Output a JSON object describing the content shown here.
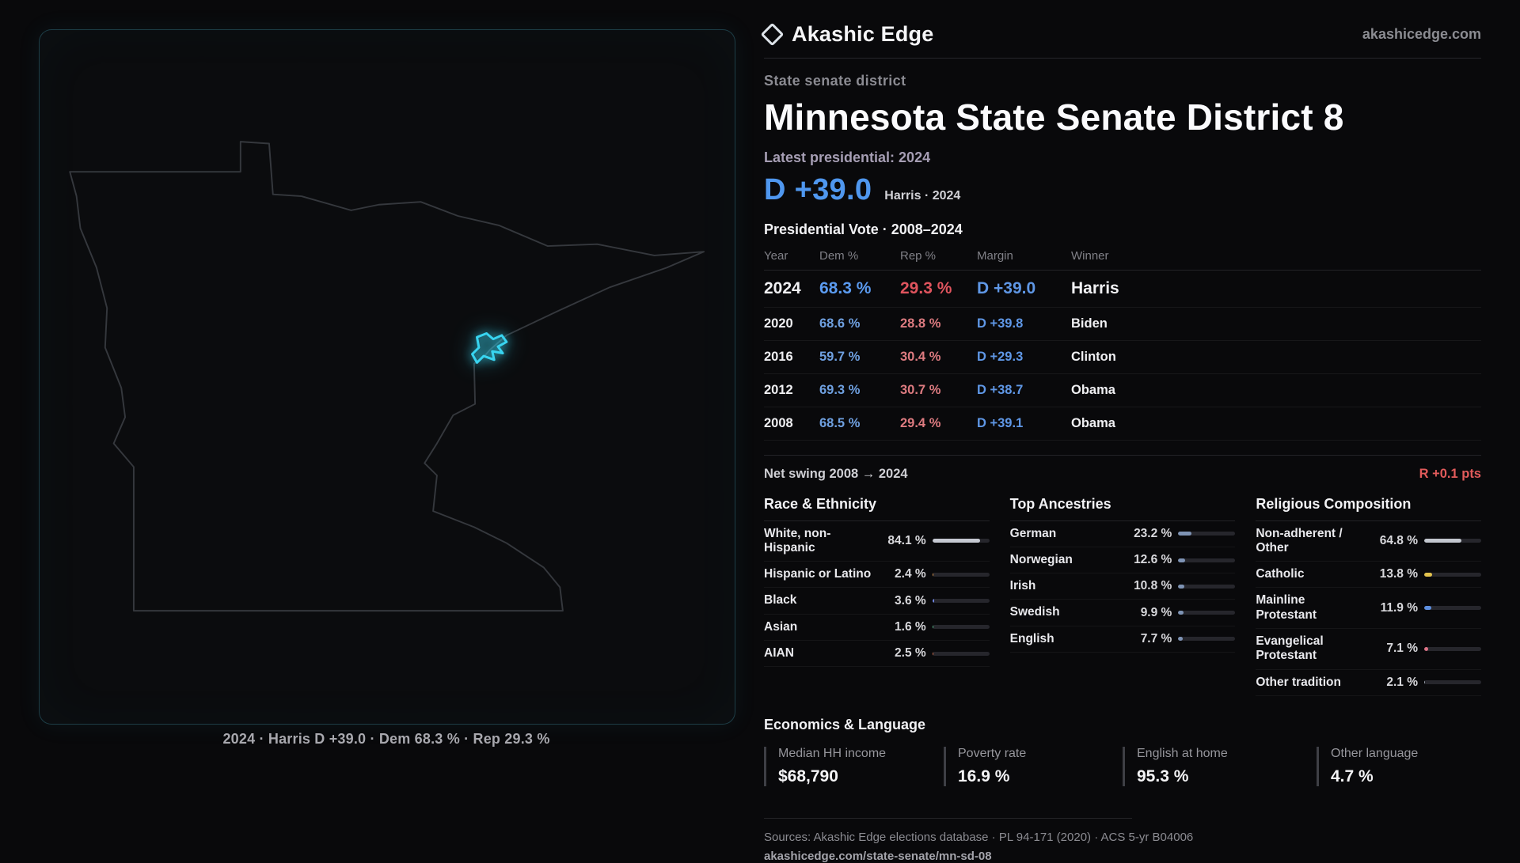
{
  "brand": {
    "name": "Akashic Edge",
    "website": "akashicedge.com"
  },
  "header": {
    "kicker": "State senate district",
    "title": "Minnesota State Senate District 8",
    "latest_label": "Latest presidential: 2024",
    "margin_value": "D +39.0",
    "margin_context": "Harris · 2024"
  },
  "colors": {
    "dem_blue": "#5b9bf0",
    "rep_red": "#e0545e",
    "accent_cyan": "#38d4f0",
    "swing_red": "#e25b5b",
    "outline_gray": "#35383d"
  },
  "map_panel": {
    "state": "Minnesota",
    "caption": "2024 · Harris D +39.0 · Dem 68.3 % · Rep 29.3 %",
    "outline_color": "#35383d",
    "district_color": "#38d4f0"
  },
  "vote_table": {
    "title": "Presidential Vote · 2008–2024",
    "columns": [
      "Year",
      "Dem %",
      "Rep %",
      "Margin",
      "Winner"
    ],
    "rows": [
      {
        "year": "2024",
        "dem": "68.3 %",
        "rep": "29.3 %",
        "margin": "D +39.0",
        "winner": "Harris",
        "emphasis": true
      },
      {
        "year": "2020",
        "dem": "68.6 %",
        "rep": "28.8 %",
        "margin": "D +39.8",
        "winner": "Biden",
        "emphasis": false
      },
      {
        "year": "2016",
        "dem": "59.7 %",
        "rep": "30.4 %",
        "margin": "D +29.3",
        "winner": "Clinton",
        "emphasis": false
      },
      {
        "year": "2012",
        "dem": "69.3 %",
        "rep": "30.7 %",
        "margin": "D +38.7",
        "winner": "Obama",
        "emphasis": false
      },
      {
        "year": "2008",
        "dem": "68.5 %",
        "rep": "29.4 %",
        "margin": "D +39.1",
        "winner": "Obama",
        "emphasis": false
      }
    ]
  },
  "net_swing": {
    "label": "Net swing 2008 → 2024",
    "value": "R +0.1 pts"
  },
  "demographics": {
    "sections": [
      {
        "title": "Race & Ethnicity",
        "rows": [
          {
            "label": "White, non-Hispanic",
            "value": "84.1 %",
            "pct": 84.1,
            "color": "#c6c9d2"
          },
          {
            "label": "Hispanic or Latino",
            "value": "2.4 %",
            "pct": 2.4,
            "color": "#e09a4e"
          },
          {
            "label": "Black",
            "value": "3.6 %",
            "pct": 3.6,
            "color": "#6f84e0"
          },
          {
            "label": "Asian",
            "value": "1.6 %",
            "pct": 1.6,
            "color": "#58c08d"
          },
          {
            "label": "AIAN",
            "value": "2.5 %",
            "pct": 2.5,
            "color": "#d4704e"
          }
        ]
      },
      {
        "title": "Top Ancestries",
        "rows": [
          {
            "label": "German",
            "value": "23.2 %",
            "pct": 23.2,
            "color": "#7e93b4"
          },
          {
            "label": "Norwegian",
            "value": "12.6 %",
            "pct": 12.6,
            "color": "#7e93b4"
          },
          {
            "label": "Irish",
            "value": "10.8 %",
            "pct": 10.8,
            "color": "#7e93b4"
          },
          {
            "label": "Swedish",
            "value": "9.9 %",
            "pct": 9.9,
            "color": "#7e93b4"
          },
          {
            "label": "English",
            "value": "7.7 %",
            "pct": 7.7,
            "color": "#7e93b4"
          }
        ]
      },
      {
        "title": "Religious Composition",
        "rows": [
          {
            "label": "Non-adherent / Other",
            "value": "64.8 %",
            "pct": 64.8,
            "color": "#c3c7cf"
          },
          {
            "label": "Catholic",
            "value": "13.8 %",
            "pct": 13.8,
            "color": "#e3c34d"
          },
          {
            "label": "Mainline Protestant",
            "value": "11.9 %",
            "pct": 11.9,
            "color": "#5d8fe0"
          },
          {
            "label": "Evangelical Protestant",
            "value": "7.1 %",
            "pct": 7.1,
            "color": "#e07487"
          },
          {
            "label": "Other tradition",
            "value": "2.1 %",
            "pct": 2.1,
            "color": "#9aa0ad"
          }
        ]
      }
    ]
  },
  "economics": {
    "title": "Economics & Language",
    "stats": [
      {
        "label": "Median HH income",
        "value": "$68,790"
      },
      {
        "label": "Poverty rate",
        "value": "16.9 %"
      },
      {
        "label": "English at home",
        "value": "95.3 %"
      },
      {
        "label": "Other language",
        "value": "4.7 %"
      }
    ]
  },
  "footer": {
    "sources": "Sources: Akashic Edge elections database · PL 94-171 (2020) · ACS 5-yr B04006",
    "permalink": "akashicedge.com/state-senate/mn-sd-08"
  },
  "chart_data": [
    {
      "type": "table",
      "title": "Presidential Vote · 2008–2024",
      "columns": [
        "Year",
        "Dem %",
        "Rep %",
        "Margin",
        "Winner"
      ],
      "rows": [
        [
          2024,
          68.3,
          29.3,
          "D +39.0",
          "Harris"
        ],
        [
          2020,
          68.6,
          28.8,
          "D +39.8",
          "Biden"
        ],
        [
          2016,
          59.7,
          30.4,
          "D +29.3",
          "Clinton"
        ],
        [
          2012,
          69.3,
          30.7,
          "D +38.7",
          "Obama"
        ],
        [
          2008,
          68.5,
          29.4,
          "D +39.1",
          "Obama"
        ]
      ]
    },
    {
      "type": "bar",
      "title": "Race & Ethnicity",
      "categories": [
        "White, non-Hispanic",
        "Hispanic or Latino",
        "Black",
        "Asian",
        "AIAN"
      ],
      "values": [
        84.1,
        2.4,
        3.6,
        1.6,
        2.5
      ],
      "unit": "%",
      "xlim": [
        0,
        100
      ],
      "orientation": "horizontal"
    },
    {
      "type": "bar",
      "title": "Top Ancestries",
      "categories": [
        "German",
        "Norwegian",
        "Irish",
        "Swedish",
        "English"
      ],
      "values": [
        23.2,
        12.6,
        10.8,
        9.9,
        7.7
      ],
      "unit": "%",
      "xlim": [
        0,
        100
      ],
      "orientation": "horizontal"
    },
    {
      "type": "bar",
      "title": "Religious Composition",
      "categories": [
        "Non-adherent / Other",
        "Catholic",
        "Mainline Protestant",
        "Evangelical Protestant",
        "Other tradition"
      ],
      "values": [
        64.8,
        13.8,
        11.9,
        7.1,
        2.1
      ],
      "unit": "%",
      "xlim": [
        0,
        100
      ],
      "orientation": "horizontal"
    }
  ]
}
